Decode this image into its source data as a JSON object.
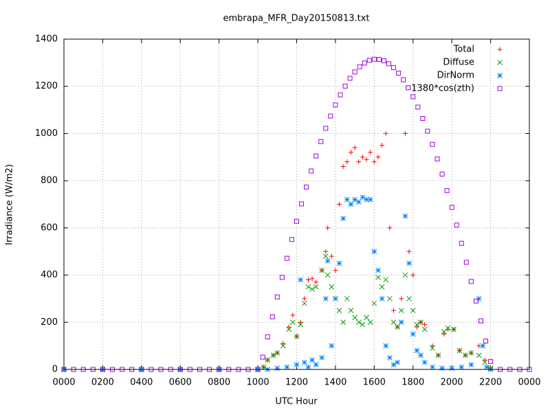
{
  "chart_data": {
    "type": "scatter",
    "title": "embrapa_MFR_Day20150813.txt",
    "x_label": "UTC Hour",
    "y_label": "Irradiance (W/m2)",
    "xlim": [
      0,
      24
    ],
    "ylim": [
      0,
      1400
    ],
    "xticks": [
      {
        "value": 0,
        "label": "0000"
      },
      {
        "value": 2,
        "label": "0200"
      },
      {
        "value": 4,
        "label": "0400"
      },
      {
        "value": 6,
        "label": "0600"
      },
      {
        "value": 8,
        "label": "0800"
      },
      {
        "value": 10,
        "label": "1000"
      },
      {
        "value": 12,
        "label": "1200"
      },
      {
        "value": 14,
        "label": "1400"
      },
      {
        "value": 16,
        "label": "1600"
      },
      {
        "value": 18,
        "label": "1800"
      },
      {
        "value": 20,
        "label": "2000"
      },
      {
        "value": 22,
        "label": "2200"
      },
      {
        "value": 24,
        "label": "0000"
      }
    ],
    "yticks": [
      0,
      200,
      400,
      600,
      800,
      1000,
      1200,
      1400
    ],
    "grid": true,
    "legend": "top-right",
    "series": [
      {
        "name": "Total",
        "color": "#ff0000",
        "marker": "plus",
        "x": [
          0,
          2,
          4,
          6,
          8,
          10,
          10.3,
          10.5,
          10.8,
          11.0,
          11.3,
          11.6,
          11.8,
          12.0,
          12.2,
          12.4,
          12.6,
          12.8,
          13.0,
          13.3,
          13.5,
          13.6,
          13.8,
          14.0,
          14.2,
          14.4,
          14.6,
          14.8,
          15.0,
          15.2,
          15.4,
          15.6,
          15.8,
          16.0,
          16.2,
          16.4,
          16.6,
          16.8,
          17.0,
          17.2,
          17.4,
          17.6,
          17.8,
          18.0,
          18.2,
          18.4,
          18.6,
          19.0,
          19.3,
          19.6,
          19.8,
          20.1,
          20.4,
          20.7,
          21.0,
          21.4,
          21.7,
          22.0
        ],
        "values": [
          0,
          0,
          0,
          0,
          0,
          0,
          10,
          40,
          60,
          70,
          110,
          180,
          230,
          140,
          200,
          300,
          380,
          385,
          370,
          420,
          500,
          600,
          480,
          420,
          700,
          860,
          880,
          920,
          940,
          880,
          900,
          890,
          920,
          880,
          900,
          950,
          1000,
          600,
          250,
          180,
          300,
          1000,
          500,
          400,
          180,
          200,
          190,
          100,
          60,
          150,
          170,
          170,
          80,
          60,
          70,
          100,
          40,
          5
        ]
      },
      {
        "name": "Diffuse",
        "color": "#00a000",
        "marker": "cross",
        "x": [
          0,
          2,
          4,
          6,
          8,
          10,
          10.3,
          10.5,
          10.8,
          11.0,
          11.3,
          11.6,
          11.8,
          12.0,
          12.2,
          12.4,
          12.6,
          12.8,
          13.0,
          13.3,
          13.5,
          13.6,
          13.8,
          14.0,
          14.2,
          14.4,
          14.6,
          14.8,
          15.0,
          15.2,
          15.4,
          15.6,
          15.8,
          16.0,
          16.2,
          16.4,
          16.6,
          16.8,
          17.0,
          17.2,
          17.4,
          17.6,
          17.8,
          18.0,
          18.2,
          18.4,
          18.6,
          19.0,
          19.3,
          19.6,
          19.8,
          20.1,
          20.4,
          20.7,
          21.0,
          21.4,
          21.7,
          22.0
        ],
        "values": [
          0,
          0,
          0,
          0,
          0,
          0,
          10,
          40,
          60,
          70,
          100,
          170,
          200,
          140,
          190,
          280,
          350,
          340,
          350,
          420,
          480,
          400,
          350,
          300,
          250,
          200,
          300,
          250,
          220,
          200,
          190,
          220,
          200,
          280,
          390,
          350,
          380,
          300,
          200,
          180,
          250,
          400,
          300,
          250,
          190,
          200,
          170,
          90,
          60,
          160,
          175,
          170,
          80,
          60,
          70,
          60,
          30,
          5
        ]
      },
      {
        "name": "DirNorm",
        "color": "#0080ff",
        "marker": "star",
        "x": [
          0,
          2,
          4,
          6,
          8,
          10,
          10.5,
          11.0,
          11.5,
          12.0,
          12.2,
          12.4,
          12.6,
          12.8,
          13.0,
          13.3,
          13.5,
          13.6,
          13.8,
          14.0,
          14.2,
          14.4,
          14.6,
          14.8,
          15.0,
          15.2,
          15.4,
          15.6,
          15.8,
          16.0,
          16.2,
          16.4,
          16.6,
          16.8,
          17.0,
          17.2,
          17.4,
          17.6,
          17.8,
          18.0,
          18.2,
          18.4,
          18.6,
          19.0,
          19.5,
          20.0,
          20.5,
          21.0,
          21.4,
          21.6,
          21.8,
          22.0
        ],
        "values": [
          0,
          0,
          0,
          0,
          0,
          0,
          0,
          5,
          10,
          20,
          380,
          30,
          10,
          40,
          20,
          50,
          300,
          460,
          100,
          300,
          450,
          640,
          720,
          700,
          720,
          710,
          730,
          720,
          720,
          500,
          420,
          300,
          100,
          50,
          20,
          30,
          200,
          650,
          450,
          150,
          80,
          60,
          30,
          10,
          5,
          5,
          10,
          20,
          300,
          100,
          10,
          0
        ]
      },
      {
        "name": "1380*cos(zth)",
        "color": "#a000e0",
        "marker": "square",
        "x": [
          0,
          0.5,
          1,
          1.5,
          2,
          2.5,
          3,
          3.5,
          4,
          4.5,
          5,
          5.5,
          6,
          6.5,
          7,
          7.5,
          8,
          8.5,
          9,
          9.5,
          10,
          10.25,
          10.5,
          10.75,
          11,
          11.25,
          11.5,
          11.75,
          12,
          12.25,
          12.5,
          12.75,
          13,
          13.25,
          13.5,
          13.75,
          14,
          14.25,
          14.5,
          14.75,
          15,
          15.25,
          15.5,
          15.75,
          16,
          16.25,
          16.5,
          16.75,
          17,
          17.25,
          17.5,
          17.75,
          18,
          18.25,
          18.5,
          18.75,
          19,
          19.25,
          19.5,
          19.75,
          20,
          20.25,
          20.5,
          20.75,
          21,
          21.25,
          21.5,
          21.75,
          22,
          22.5,
          23,
          23.5,
          24
        ],
        "values": [
          0,
          0,
          0,
          0,
          0,
          0,
          0,
          0,
          0,
          0,
          0,
          0,
          0,
          0,
          0,
          0,
          0,
          0,
          0,
          0,
          0,
          52,
          138,
          223,
          307,
          390,
          471,
          551,
          628,
          702,
          773,
          841,
          905,
          966,
          1022,
          1074,
          1121,
          1164,
          1201,
          1234,
          1261,
          1283,
          1299,
          1310,
          1315,
          1314,
          1308,
          1296,
          1279,
          1256,
          1228,
          1194,
          1156,
          1112,
          1064,
          1010,
          954,
          892,
          828,
          758,
          687,
          612,
          535,
          454,
          373,
          290,
          206,
          120,
          34,
          0,
          0,
          0,
          0
        ]
      }
    ]
  }
}
